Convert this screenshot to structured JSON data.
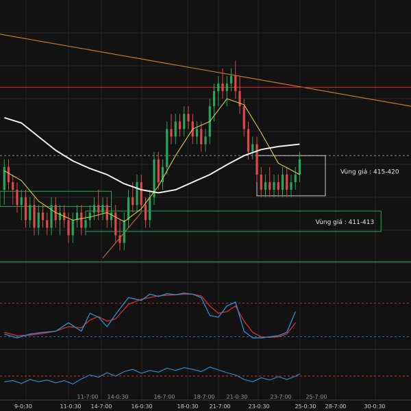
{
  "chart_data": {
    "type": "candlestick",
    "main": {
      "candles": [
        [
          0,
          416,
          420,
          414,
          419
        ],
        [
          1,
          419,
          420,
          416,
          417
        ],
        [
          2,
          417,
          418,
          414,
          416
        ],
        [
          3,
          416,
          417,
          413,
          414
        ],
        [
          4,
          414,
          416,
          412,
          415
        ],
        [
          5,
          415,
          416,
          411,
          412
        ],
        [
          6,
          412,
          415,
          411,
          414
        ],
        [
          7,
          414,
          415,
          410,
          411
        ],
        [
          8,
          411,
          414,
          410,
          413
        ],
        [
          9,
          413,
          414,
          411,
          412
        ],
        [
          10,
          412,
          413,
          410,
          411
        ],
        [
          11,
          411,
          415,
          410,
          414
        ],
        [
          12,
          414,
          415,
          411,
          412
        ],
        [
          13,
          412,
          414,
          410,
          413
        ],
        [
          14,
          413,
          414,
          411,
          412
        ],
        [
          15,
          412,
          413,
          409,
          410
        ],
        [
          16,
          410,
          413,
          409,
          412
        ],
        [
          17,
          412,
          414,
          411,
          413
        ],
        [
          18,
          413,
          414,
          410,
          411
        ],
        [
          19,
          411,
          413,
          410,
          412
        ],
        [
          20,
          412,
          414,
          411,
          413
        ],
        [
          21,
          413,
          415,
          412,
          414
        ],
        [
          22,
          414,
          416,
          412,
          413
        ],
        [
          23,
          413,
          415,
          412,
          414
        ],
        [
          24,
          414,
          415,
          411,
          412
        ],
        [
          25,
          412,
          414,
          411,
          413
        ],
        [
          26,
          413,
          414,
          409,
          410
        ],
        [
          27,
          410,
          412,
          408,
          409
        ],
        [
          28,
          409,
          413,
          408,
          412
        ],
        [
          29,
          412,
          416,
          411,
          415
        ],
        [
          30,
          415,
          417,
          413,
          414
        ],
        [
          31,
          414,
          418,
          413,
          417
        ],
        [
          32,
          417,
          418,
          413,
          414
        ],
        [
          33,
          414,
          415,
          411,
          412
        ],
        [
          34,
          412,
          416,
          411,
          415
        ],
        [
          35,
          415,
          421,
          414,
          420
        ],
        [
          36,
          420,
          421,
          416,
          417
        ],
        [
          37,
          417,
          420,
          416,
          419
        ],
        [
          38,
          419,
          425,
          418,
          424
        ],
        [
          39,
          424,
          426,
          422,
          423
        ],
        [
          40,
          423,
          426,
          422,
          425
        ],
        [
          41,
          425,
          426,
          423,
          424
        ],
        [
          42,
          424,
          427,
          423,
          426
        ],
        [
          43,
          426,
          427,
          424,
          425
        ],
        [
          44,
          425,
          426,
          422,
          423
        ],
        [
          45,
          423,
          425,
          422,
          424
        ],
        [
          46,
          424,
          425,
          421,
          422
        ],
        [
          47,
          422,
          424,
          421,
          423
        ],
        [
          48,
          423,
          428,
          422,
          427
        ],
        [
          49,
          427,
          430,
          425,
          429
        ],
        [
          50,
          429,
          431,
          427,
          430
        ],
        [
          51,
          430,
          432,
          428,
          429
        ],
        [
          52,
          429,
          431,
          427,
          430
        ],
        [
          53,
          430,
          432,
          429,
          431
        ],
        [
          54,
          431,
          433,
          428,
          429
        ],
        [
          55,
          429,
          431,
          426,
          427
        ],
        [
          56,
          427,
          428,
          423,
          424
        ],
        [
          57,
          424,
          425,
          420,
          421
        ],
        [
          58,
          421,
          423,
          420,
          422
        ],
        [
          59,
          422,
          423,
          417,
          418
        ],
        [
          60,
          418,
          419,
          415,
          416
        ],
        [
          61,
          416,
          418,
          415,
          417
        ],
        [
          62,
          417,
          419,
          415,
          416
        ],
        [
          63,
          416,
          418,
          415,
          417
        ],
        [
          64,
          417,
          418,
          415,
          416
        ],
        [
          65,
          416,
          419,
          415,
          418
        ],
        [
          66,
          418,
          419,
          415,
          416
        ],
        [
          67,
          416,
          418,
          415,
          417
        ],
        [
          68,
          417,
          419,
          416,
          418
        ],
        [
          69,
          418,
          421,
          417,
          420
        ]
      ],
      "sma_yellow": [
        [
          0,
          418.5
        ],
        [
          4,
          417.2
        ],
        [
          8,
          414.5
        ],
        [
          12,
          413.0
        ],
        [
          16,
          412.0
        ],
        [
          20,
          412.4
        ],
        [
          24,
          413.0
        ],
        [
          28,
          411.8
        ],
        [
          32,
          413.5
        ],
        [
          36,
          416.5
        ],
        [
          40,
          420.5
        ],
        [
          44,
          424.0
        ],
        [
          48,
          425.0
        ],
        [
          52,
          428.0
        ],
        [
          56,
          427.2
        ],
        [
          60,
          423.5
        ],
        [
          64,
          419.5
        ],
        [
          69,
          418.0
        ]
      ],
      "ema_white": [
        [
          0,
          425.5
        ],
        [
          4,
          424.8
        ],
        [
          8,
          423.0
        ],
        [
          12,
          421.2
        ],
        [
          16,
          419.8
        ],
        [
          20,
          418.8
        ],
        [
          24,
          418.0
        ],
        [
          28,
          416.8
        ],
        [
          32,
          416.0
        ],
        [
          36,
          415.6
        ],
        [
          40,
          416.0
        ],
        [
          44,
          417.0
        ],
        [
          48,
          418.0
        ],
        [
          52,
          419.3
        ],
        [
          56,
          420.5
        ],
        [
          60,
          421.3
        ],
        [
          64,
          421.7
        ],
        [
          69,
          422.0
        ]
      ],
      "trendline_orange": [
        [
          -1,
          436.5
        ],
        [
          95,
          427.0
        ]
      ],
      "hline_red": 429.5,
      "hline_green": 406.5,
      "hline_dashed": 420.5,
      "zone_green_left": {
        "x": [
          -1,
          25
        ],
        "price": [
          415.8,
          413.8
        ]
      },
      "zone_box_1": {
        "x": [
          59,
          75
        ],
        "price": [
          420.5,
          415.2
        ],
        "label": "Vùng giá : 415-420"
      },
      "zone_box_2": {
        "x": [
          19,
          88
        ],
        "price": [
          413.2,
          410.5
        ],
        "label": "Vùng giá : 411-413"
      },
      "up_trendline": [
        [
          23,
          407.0
        ],
        [
          32,
          413.0
        ]
      ],
      "ylim": [
        404,
        441
      ]
    },
    "stochastic": {
      "k": [
        [
          0,
          25
        ],
        [
          3,
          18
        ],
        [
          6,
          25
        ],
        [
          9,
          28
        ],
        [
          12,
          30
        ],
        [
          15,
          45
        ],
        [
          18,
          30
        ],
        [
          20,
          62
        ],
        [
          22,
          55
        ],
        [
          24,
          38
        ],
        [
          26,
          60
        ],
        [
          29,
          90
        ],
        [
          32,
          85
        ],
        [
          34,
          96
        ],
        [
          36,
          92
        ],
        [
          38,
          97
        ],
        [
          40,
          95
        ],
        [
          42,
          98
        ],
        [
          44,
          96
        ],
        [
          46,
          90
        ],
        [
          48,
          58
        ],
        [
          50,
          55
        ],
        [
          52,
          75
        ],
        [
          54,
          82
        ],
        [
          56,
          30
        ],
        [
          58,
          18
        ],
        [
          60,
          18
        ],
        [
          62,
          20
        ],
        [
          64,
          22
        ],
        [
          66,
          28
        ],
        [
          68,
          65
        ]
      ],
      "d": [
        [
          0,
          28
        ],
        [
          3,
          22
        ],
        [
          6,
          23
        ],
        [
          9,
          26
        ],
        [
          12,
          30
        ],
        [
          15,
          38
        ],
        [
          18,
          36
        ],
        [
          20,
          50
        ],
        [
          22,
          56
        ],
        [
          24,
          48
        ],
        [
          26,
          52
        ],
        [
          29,
          78
        ],
        [
          32,
          87
        ],
        [
          34,
          90
        ],
        [
          36,
          93
        ],
        [
          38,
          94
        ],
        [
          40,
          95
        ],
        [
          42,
          96
        ],
        [
          44,
          96
        ],
        [
          46,
          93
        ],
        [
          48,
          75
        ],
        [
          50,
          62
        ],
        [
          52,
          65
        ],
        [
          54,
          75
        ],
        [
          56,
          48
        ],
        [
          58,
          28
        ],
        [
          60,
          20
        ],
        [
          62,
          19
        ],
        [
          64,
          20
        ],
        [
          66,
          25
        ],
        [
          68,
          45
        ]
      ],
      "upper_level": 80,
      "lower_level": 20,
      "ylim": [
        0,
        115
      ]
    },
    "rsi": {
      "values": [
        [
          0,
          40
        ],
        [
          2,
          42
        ],
        [
          4,
          37
        ],
        [
          6,
          44
        ],
        [
          8,
          40
        ],
        [
          10,
          43
        ],
        [
          12,
          38
        ],
        [
          14,
          42
        ],
        [
          16,
          36
        ],
        [
          18,
          45
        ],
        [
          20,
          52
        ],
        [
          22,
          48
        ],
        [
          24,
          56
        ],
        [
          26,
          50
        ],
        [
          28,
          58
        ],
        [
          30,
          62
        ],
        [
          32,
          55
        ],
        [
          34,
          60
        ],
        [
          36,
          57
        ],
        [
          38,
          64
        ],
        [
          40,
          60
        ],
        [
          42,
          65
        ],
        [
          44,
          62
        ],
        [
          46,
          58
        ],
        [
          48,
          66
        ],
        [
          50,
          61
        ],
        [
          52,
          56
        ],
        [
          54,
          52
        ],
        [
          56,
          44
        ],
        [
          58,
          40
        ],
        [
          60,
          47
        ],
        [
          62,
          43
        ],
        [
          64,
          49
        ],
        [
          66,
          44
        ],
        [
          68,
          50
        ],
        [
          69,
          54
        ]
      ],
      "ref_level": 50,
      "ylim": [
        10,
        95
      ]
    },
    "time_labels": [
      "9-0:30",
      "11-0:30",
      "14-7:00",
      "16-0:30",
      "18-0:30",
      "21-7:00",
      "23-0:30",
      "25-0:30",
      "28-7:00",
      "30-0:30"
    ],
    "minor_time_labels": [
      "11-7:00",
      "14-0:30",
      "16-7:00",
      "18-7:00",
      "21-0:30",
      "23-7:00",
      "25-7:00"
    ],
    "x_range": [
      -1,
      95
    ]
  },
  "colors": {
    "background": "#121212",
    "grid": "#222222",
    "bull": "#26a65b",
    "bear": "#e04848",
    "yellow_ma": "#d8cf3a",
    "white_ma": "#f0f0f0",
    "orange_line": "#c87a2a",
    "red_line": "#c82828",
    "green_line": "#28a85a",
    "dashed_line": "#8a8a8a",
    "box_white": "#cfcfcf",
    "stoch_blue": "#2f8fd8",
    "stoch_red": "#d83030",
    "stoch_upper": "#b03030",
    "stoch_lower": "#2f6fb8",
    "rsi_line": "#2f8fd8",
    "panel_divider": "#3a3a3a"
  }
}
